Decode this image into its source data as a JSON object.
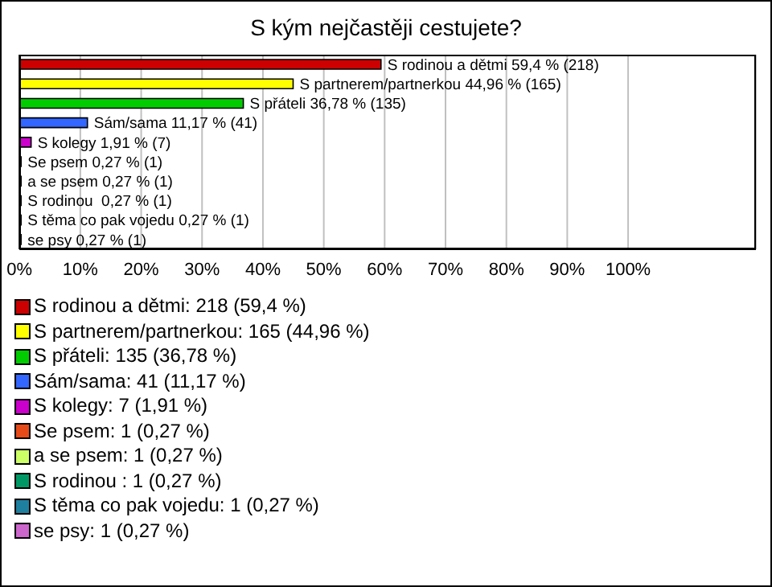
{
  "chart_data": {
    "type": "bar",
    "orientation": "horizontal",
    "title": "S kým nejčastěji cestujete?",
    "categories": [
      null,
      null,
      null,
      null,
      null,
      null,
      null,
      null,
      null,
      null
    ],
    "values": [
      59.4,
      44.96,
      36.78,
      11.17,
      1.91,
      0.27,
      0.27,
      0.27,
      0.27,
      0.27
    ],
    "colors": [
      "#cc0000",
      "#ffff00",
      "#00cc00",
      "#3366ff",
      "#cc00cc",
      "#e64a19",
      "#ccff66",
      "#009966",
      "#1f7f9f",
      "#cc66cc"
    ],
    "value_labels": [
      "S rodinou a dětmi 59,4 % (218)",
      "S partnerem/partnerkou 44,96 % (165)",
      "S přáteli 36,78 % (135)",
      "Sám/sama 11,17 % (41)",
      "S kolegy 1,91 % (7)",
      "Se psem 0,27 % (1)",
      "a se psem 0,27 % (1)",
      "S rodinou  0,27 % (1)",
      "S těma co pak vojedu 0,27 % (1)",
      "se psy 0,27 % (1)"
    ],
    "xlim": [
      0,
      121
    ],
    "xticks": [
      {
        "value": 0,
        "label": "0%"
      },
      {
        "value": 10,
        "label": "10%"
      },
      {
        "value": 20,
        "label": "20%"
      },
      {
        "value": 30,
        "label": "30%"
      },
      {
        "value": 40,
        "label": "40%"
      },
      {
        "value": 50,
        "label": "50%"
      },
      {
        "value": 60,
        "label": "60%"
      },
      {
        "value": 70,
        "label": "70%"
      },
      {
        "value": 80,
        "label": "80%"
      },
      {
        "value": 90,
        "label": "90%"
      },
      {
        "value": 100,
        "label": "100%"
      }
    ],
    "grid": "x",
    "annotations": [
      "S rodinou a dětmi: 218 (59,4 %)",
      "S partnerem/partnerkou: 165 (44,96 %)",
      "S přáteli: 135 (36,78 %)",
      "Sám/sama: 41 (11,17 %)",
      "S kolegy: 7 (1,91 %)",
      "Se psem: 1 (0,27 %)",
      "a se psem: 1 (0,27 %)",
      "S rodinou : 1 (0,27 %)",
      "S těma co pak vojedu: 1 (0,27 %)",
      "se psy: 1 (0,27 %)"
    ]
  }
}
